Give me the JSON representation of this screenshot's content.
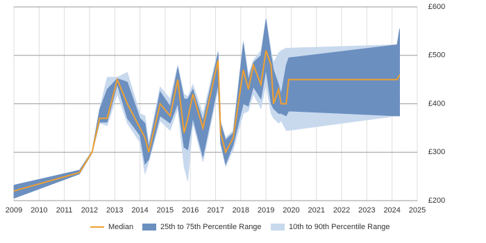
{
  "chart_data": {
    "type": "line",
    "x": [
      2009.0,
      2011.6,
      2012.1,
      2012.4,
      2012.7,
      2013.1,
      2013.5,
      2014.0,
      2014.2,
      2014.35,
      2014.8,
      2015.2,
      2015.5,
      2015.75,
      2015.9,
      2016.1,
      2016.5,
      2017.1,
      2017.2,
      2017.4,
      2017.7,
      2018.1,
      2018.3,
      2018.5,
      2018.8,
      2019.0,
      2019.2,
      2019.3,
      2019.5,
      2019.6,
      2019.8,
      2019.9,
      2024.2,
      2024.3
    ],
    "series": [
      {
        "name": "Median",
        "color": "#f0a030",
        "values": [
          220,
          258,
          300,
          370,
          370,
          450,
          400,
          350,
          330,
          300,
          400,
          375,
          450,
          340,
          370,
          420,
          350,
          490,
          340,
          300,
          330,
          470,
          430,
          480,
          440,
          510,
          480,
          400,
          430,
          400,
          400,
          450,
          450,
          460
        ]
      },
      {
        "name": "25th to 75th Percentile Range",
        "color": "#6b8fbf",
        "lower": [
          205,
          255,
          298,
          362,
          362,
          440,
          370,
          335,
          275,
          285,
          375,
          360,
          400,
          310,
          305,
          370,
          290,
          440,
          320,
          275,
          315,
          400,
          395,
          435,
          410,
          470,
          400,
          390,
          380,
          380,
          375,
          385,
          375,
          375
        ],
        "upper": [
          232,
          263,
          302,
          388,
          430,
          452,
          445,
          370,
          360,
          310,
          425,
          395,
          475,
          410,
          410,
          430,
          365,
          505,
          360,
          325,
          340,
          525,
          450,
          485,
          500,
          575,
          500,
          470,
          440,
          420,
          480,
          495,
          522,
          555
        ]
      },
      {
        "name": "10th to 90th Percentile Range",
        "color": "#c8d9ee",
        "lower": [
          205,
          255,
          298,
          360,
          355,
          420,
          360,
          320,
          255,
          280,
          365,
          345,
          390,
          270,
          240,
          360,
          280,
          430,
          315,
          270,
          305,
          380,
          385,
          420,
          390,
          440,
          380,
          370,
          360,
          365,
          345,
          345,
          375,
          375
        ],
        "upper": [
          232,
          263,
          302,
          390,
          455,
          455,
          465,
          380,
          375,
          320,
          435,
          410,
          480,
          420,
          415,
          440,
          380,
          510,
          365,
          330,
          345,
          530,
          460,
          490,
          510,
          575,
          510,
          485,
          505,
          510,
          515,
          515,
          522,
          555
        ]
      }
    ],
    "xlim": [
      2009,
      2025
    ],
    "xticks": [
      2009,
      2010,
      2011,
      2012,
      2013,
      2014,
      2015,
      2016,
      2017,
      2018,
      2019,
      2020,
      2021,
      2022,
      2023,
      2024,
      2025
    ],
    "ylim": [
      200,
      600
    ],
    "yticks": [
      {
        "value": 200,
        "label": "£200"
      },
      {
        "value": 300,
        "label": "£300"
      },
      {
        "value": 400,
        "label": "£400"
      },
      {
        "value": 500,
        "label": "£500"
      },
      {
        "value": 600,
        "label": "£600"
      }
    ],
    "grid": true
  }
}
